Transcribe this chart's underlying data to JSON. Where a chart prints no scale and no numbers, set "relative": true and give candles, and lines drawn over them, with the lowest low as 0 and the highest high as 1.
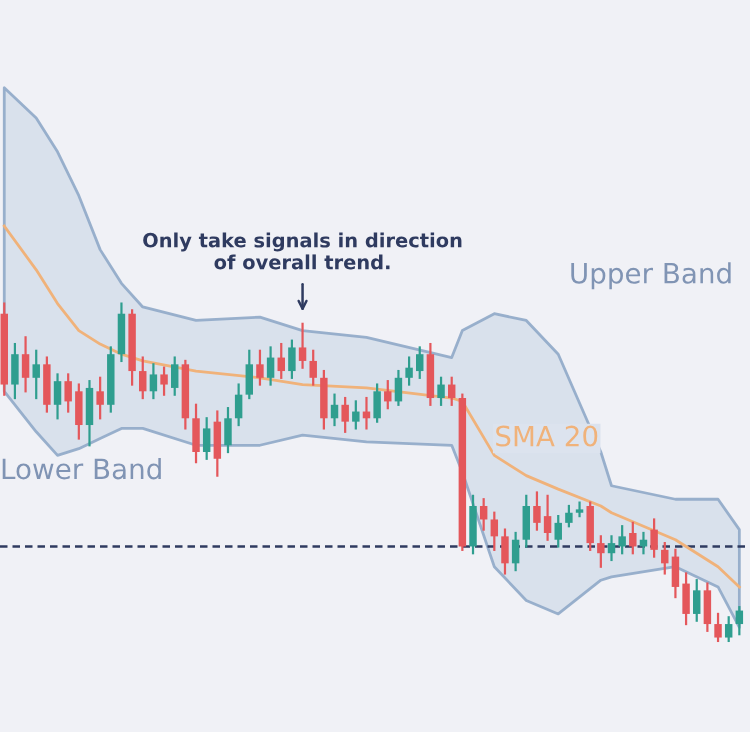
{
  "chart_data": {
    "type": "candlestick",
    "relative": true,
    "categories": [
      null,
      null,
      null,
      null,
      null,
      null,
      null,
      null,
      null,
      null,
      null,
      null,
      null,
      null,
      null,
      null,
      null,
      null,
      null,
      null,
      null,
      null,
      null,
      null,
      null,
      null,
      null,
      null,
      null,
      null,
      null,
      null,
      null,
      null,
      null,
      null,
      null,
      null,
      null,
      null,
      null,
      null,
      null,
      null,
      null,
      null,
      null,
      null,
      null,
      null,
      null,
      null,
      null,
      null,
      null,
      null,
      null,
      null,
      null,
      null,
      null,
      null,
      null,
      null,
      null,
      null,
      null,
      null,
      null,
      null
    ],
    "ohlc": [
      [
        0.97,
        1.0,
        0.73,
        0.76
      ],
      [
        0.76,
        0.88,
        0.72,
        0.85
      ],
      [
        0.85,
        0.9,
        0.74,
        0.78
      ],
      [
        0.78,
        0.86,
        0.72,
        0.82
      ],
      [
        0.82,
        0.84,
        0.68,
        0.7
      ],
      [
        0.7,
        0.79,
        0.66,
        0.77
      ],
      [
        0.77,
        0.79,
        0.68,
        0.71
      ],
      [
        0.74,
        0.76,
        0.6,
        0.64
      ],
      [
        0.64,
        0.77,
        0.58,
        0.75
      ],
      [
        0.74,
        0.78,
        0.66,
        0.7
      ],
      [
        0.7,
        0.87,
        0.68,
        0.85
      ],
      [
        0.85,
        1.0,
        0.83,
        0.97
      ],
      [
        0.97,
        0.98,
        0.76,
        0.8
      ],
      [
        0.8,
        0.84,
        0.72,
        0.74
      ],
      [
        0.74,
        0.82,
        0.72,
        0.79
      ],
      [
        0.79,
        0.81,
        0.73,
        0.76
      ],
      [
        0.75,
        0.84,
        0.73,
        0.82
      ],
      [
        0.82,
        0.83,
        0.63,
        0.66
      ],
      [
        0.66,
        0.7,
        0.53,
        0.56
      ],
      [
        0.56,
        0.66,
        0.54,
        0.63
      ],
      [
        0.65,
        0.68,
        0.49,
        0.54
      ],
      [
        0.58,
        0.69,
        0.56,
        0.66
      ],
      [
        0.66,
        0.76,
        0.64,
        0.73
      ],
      [
        0.73,
        0.86,
        0.72,
        0.82
      ],
      [
        0.82,
        0.86,
        0.76,
        0.78
      ],
      [
        0.78,
        0.87,
        0.76,
        0.84
      ],
      [
        0.84,
        0.88,
        0.78,
        0.8
      ],
      [
        0.8,
        0.89,
        0.78,
        0.87
      ],
      [
        0.87,
        0.94,
        0.81,
        0.83
      ],
      [
        0.83,
        0.86,
        0.76,
        0.78
      ],
      [
        0.78,
        0.8,
        0.63,
        0.66
      ],
      [
        0.66,
        0.73,
        0.64,
        0.7
      ],
      [
        0.7,
        0.72,
        0.62,
        0.65
      ],
      [
        0.65,
        0.71,
        0.63,
        0.68
      ],
      [
        0.68,
        0.72,
        0.63,
        0.66
      ],
      [
        0.66,
        0.76,
        0.65,
        0.74
      ],
      [
        0.74,
        0.77,
        0.69,
        0.71
      ],
      [
        0.71,
        0.8,
        0.7,
        0.78
      ],
      [
        0.78,
        0.84,
        0.76,
        0.81
      ],
      [
        0.8,
        0.87,
        0.78,
        0.85
      ],
      [
        0.85,
        0.88,
        0.7,
        0.72
      ],
      [
        0.72,
        0.78,
        0.7,
        0.76
      ],
      [
        0.76,
        0.78,
        0.7,
        0.72
      ],
      [
        0.72,
        0.73,
        0.27,
        0.28
      ],
      [
        0.28,
        0.43,
        0.26,
        0.4
      ],
      [
        0.4,
        0.42,
        0.33,
        0.36
      ],
      [
        0.36,
        0.38,
        0.27,
        0.31
      ],
      [
        0.31,
        0.33,
        0.2,
        0.23
      ],
      [
        0.23,
        0.32,
        0.21,
        0.3
      ],
      [
        0.3,
        0.43,
        0.28,
        0.4
      ],
      [
        0.4,
        0.44,
        0.33,
        0.35
      ],
      [
        0.37,
        0.43,
        0.3,
        0.32
      ],
      [
        0.3,
        0.37,
        0.28,
        0.35
      ],
      [
        0.35,
        0.4,
        0.34,
        0.38
      ],
      [
        0.38,
        0.41,
        0.37,
        0.39
      ],
      [
        0.4,
        0.41,
        0.27,
        0.29
      ],
      [
        0.29,
        0.31,
        0.22,
        0.26
      ],
      [
        0.26,
        0.31,
        0.24,
        0.29
      ],
      [
        0.28,
        0.34,
        0.26,
        0.31
      ],
      [
        0.32,
        0.35,
        0.26,
        0.28
      ],
      [
        0.28,
        0.32,
        0.26,
        0.3
      ],
      [
        0.33,
        0.36,
        0.25,
        0.27
      ],
      [
        0.27,
        0.29,
        0.2,
        0.23
      ],
      [
        0.25,
        0.27,
        0.13,
        0.16
      ],
      [
        0.17,
        0.2,
        0.05,
        0.08
      ],
      [
        0.08,
        0.18,
        0.06,
        0.15
      ],
      [
        0.15,
        0.17,
        0.03,
        0.05
      ],
      [
        0.05,
        0.08,
        0.0,
        0.01
      ],
      [
        0.01,
        0.07,
        0.0,
        0.05
      ],
      [
        0.05,
        0.1,
        0.02,
        0.09
      ]
    ],
    "series": [
      {
        "type": "line",
        "name": "SMA 20",
        "color": "#f0b27a",
        "values": [
          1.23,
          null,
          null,
          1.1,
          null,
          1.0,
          null,
          0.92,
          null,
          0.88,
          null,
          0.85,
          null,
          0.83,
          null,
          null,
          null,
          null,
          0.8,
          null,
          null,
          null,
          null,
          null,
          0.78,
          null,
          null,
          null,
          0.76,
          null,
          null,
          null,
          null,
          null,
          0.75,
          null,
          null,
          null,
          null,
          null,
          null,
          null,
          0.72,
          0.71,
          null,
          null,
          0.55,
          null,
          null,
          0.49,
          null,
          null,
          0.45,
          null,
          null,
          null,
          0.4,
          0.38,
          null,
          null,
          null,
          null,
          null,
          0.3,
          null,
          null,
          null,
          0.22,
          null,
          0.16
        ],
        "lower": [
          0.74,
          null,
          null,
          0.62,
          null,
          0.55,
          null,
          0.57,
          null,
          0.6,
          null,
          0.63,
          null,
          0.63,
          null,
          null,
          null,
          null,
          0.58,
          null,
          null,
          null,
          null,
          null,
          0.58,
          null,
          null,
          null,
          0.61,
          null,
          null,
          null,
          null,
          null,
          0.59,
          null,
          null,
          null,
          null,
          null,
          null,
          null,
          0.58,
          0.5,
          null,
          null,
          0.22,
          null,
          null,
          0.12,
          null,
          null,
          0.08,
          null,
          null,
          null,
          0.18,
          0.19,
          null,
          null,
          null,
          null,
          null,
          0.22,
          null,
          null,
          null,
          0.16,
          null,
          0.04
        ],
        "upper": [
          1.64,
          null,
          null,
          1.55,
          null,
          1.45,
          null,
          1.32,
          null,
          1.16,
          null,
          1.06,
          null,
          0.99,
          null,
          null,
          null,
          null,
          0.95,
          null,
          null,
          null,
          null,
          null,
          0.96,
          null,
          null,
          null,
          0.92,
          null,
          null,
          null,
          null,
          null,
          0.9,
          null,
          null,
          null,
          null,
          null,
          null,
          null,
          0.84,
          0.92,
          null,
          null,
          0.97,
          null,
          null,
          0.95,
          null,
          null,
          0.85,
          null,
          null,
          null,
          0.56,
          0.46,
          null,
          null,
          null,
          null,
          null,
          0.42,
          null,
          null,
          null,
          0.42,
          null,
          0.33
        ]
      }
    ],
    "ref_lines": [
      {
        "axis": "y",
        "value": 0.28,
        "color": "#2f3b60",
        "line_style": "dashed"
      }
    ],
    "annotations": [
      "Only take signals in direction\nof overall trend.",
      "Upper Band",
      "Lower Band"
    ]
  }
}
